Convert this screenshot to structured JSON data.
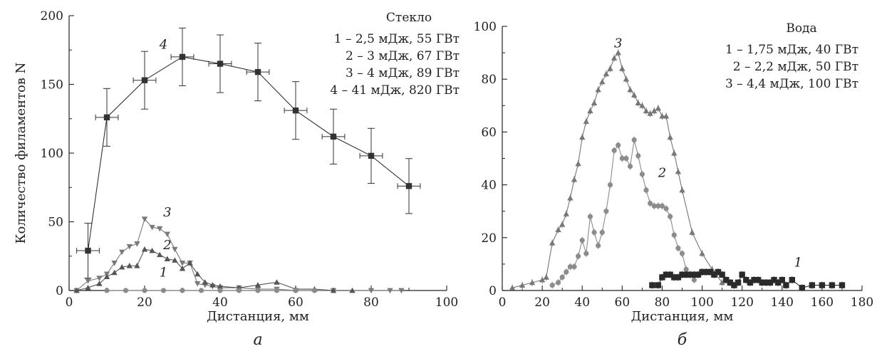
{
  "chart_data": [
    {
      "type": "line",
      "panel_label": "а",
      "ylabel": "Количество филаментов N",
      "xlabel": "Дистанция, мм",
      "xlim": [
        0,
        100
      ],
      "ylim": [
        0,
        200
      ],
      "xticks": [
        0,
        20,
        40,
        60,
        80,
        100
      ],
      "yticks": [
        0,
        50,
        100,
        150,
        200
      ],
      "legend_title": "Стекло",
      "legend": [
        "1 – 2,5 мДж, 55 ГВт",
        "2 – 3 мДж, 67 ГВт",
        "3 – 4 мДж, 89 ГВт",
        "4 – 41 мДж, 820 ГВт"
      ],
      "series": [
        {
          "name": "4",
          "color": "#333333",
          "marker": "square",
          "x": [
            5,
            10,
            20,
            30,
            40,
            50,
            60,
            70,
            80,
            90
          ],
          "y": [
            29,
            126,
            153,
            170,
            165,
            159,
            131,
            112,
            98,
            76
          ],
          "yerr": [
            20,
            21,
            21,
            21,
            21,
            21,
            21,
            20,
            20,
            20
          ],
          "xerr": [
            3,
            3,
            3,
            3,
            3,
            3,
            3,
            3,
            3,
            3
          ]
        },
        {
          "name": "3",
          "color": "#7a7a7a",
          "marker": "tri-down",
          "x": [
            2,
            5,
            8,
            10,
            12,
            14,
            16,
            18,
            20,
            22,
            24,
            26,
            28,
            30,
            32,
            34,
            36,
            38,
            40,
            45,
            50,
            55,
            60,
            70,
            80,
            85,
            88
          ],
          "y": [
            0,
            7,
            9,
            12,
            20,
            28,
            32,
            34,
            52,
            46,
            45,
            41,
            30,
            20,
            20,
            5,
            4,
            3,
            2,
            2,
            1,
            1,
            0,
            0,
            0,
            0,
            0
          ]
        },
        {
          "name": "2",
          "color": "#555555",
          "marker": "tri-up",
          "x": [
            2,
            5,
            8,
            10,
            12,
            14,
            16,
            18,
            20,
            22,
            24,
            26,
            28,
            30,
            32,
            34,
            36,
            38,
            40,
            45,
            50,
            55,
            60,
            65,
            70,
            75
          ],
          "y": [
            0,
            2,
            5,
            10,
            13,
            17,
            18,
            18,
            30,
            29,
            26,
            23,
            22,
            16,
            20,
            12,
            6,
            4,
            3,
            2,
            4,
            6,
            1,
            1,
            0,
            0
          ]
        },
        {
          "name": "1",
          "color": "#8a8a8a",
          "marker": "circle",
          "x": [
            10,
            15,
            20,
            25,
            30,
            35,
            40,
            45,
            50,
            55,
            60,
            65
          ],
          "y": [
            0,
            0,
            0,
            0,
            0,
            0,
            0,
            0,
            0,
            0,
            0,
            0
          ]
        }
      ],
      "annotations": [
        {
          "text": "4",
          "x": 25,
          "y": 176
        },
        {
          "text": "3",
          "x": 26,
          "y": 54
        },
        {
          "text": "2",
          "x": 26,
          "y": 30
        },
        {
          "text": "1",
          "x": 25,
          "y": 10
        }
      ]
    },
    {
      "type": "line",
      "panel_label": "б",
      "ylabel": "",
      "xlabel": "Дистанция, мм",
      "xlim": [
        0,
        180
      ],
      "ylim": [
        0,
        100
      ],
      "xticks": [
        0,
        20,
        40,
        60,
        80,
        100,
        120,
        140,
        160,
        180
      ],
      "yticks": [
        0,
        20,
        40,
        60,
        80,
        100
      ],
      "legend_title": "Вода",
      "legend": [
        "1 – 1,75 мДж, 40 ГВт",
        "2 – 2,2 мДж, 50 ГВт",
        "3 – 4,4 мДж, 100 ГВт"
      ],
      "series": [
        {
          "name": "3",
          "color": "#777777",
          "marker": "tri-up",
          "x": [
            5,
            10,
            15,
            20,
            22,
            25,
            28,
            30,
            32,
            34,
            36,
            38,
            40,
            42,
            44,
            46,
            48,
            50,
            52,
            54,
            56,
            58,
            60,
            62,
            64,
            66,
            68,
            70,
            72,
            74,
            76,
            78,
            80,
            82,
            84,
            86,
            88,
            90,
            95,
            100,
            105,
            110
          ],
          "y": [
            1,
            2,
            3,
            4,
            5,
            18,
            23,
            25,
            29,
            35,
            42,
            48,
            58,
            64,
            68,
            71,
            76,
            79,
            82,
            84,
            88,
            90,
            84,
            80,
            76,
            74,
            71,
            70,
            68,
            67,
            68,
            69,
            66,
            66,
            58,
            52,
            45,
            38,
            22,
            14,
            8,
            3
          ]
        },
        {
          "name": "2",
          "color": "#8c8c8c",
          "marker": "circle",
          "x": [
            25,
            28,
            30,
            32,
            34,
            36,
            38,
            40,
            42,
            44,
            46,
            48,
            50,
            52,
            54,
            56,
            58,
            60,
            62,
            64,
            66,
            68,
            70,
            72,
            74,
            76,
            78,
            80,
            82,
            84,
            86,
            88,
            90,
            92,
            94,
            96
          ],
          "y": [
            2,
            3,
            5,
            7,
            9,
            9,
            13,
            19,
            14,
            28,
            22,
            17,
            22,
            30,
            40,
            53,
            55,
            50,
            50,
            47,
            57,
            51,
            44,
            38,
            33,
            32,
            32,
            32,
            31,
            28,
            21,
            16,
            14,
            8,
            6,
            4
          ]
        },
        {
          "name": "1",
          "color": "#2a2a2a",
          "marker": "square",
          "x": [
            75,
            78,
            80,
            82,
            84,
            86,
            88,
            90,
            92,
            94,
            96,
            98,
            100,
            102,
            104,
            106,
            108,
            110,
            112,
            114,
            116,
            118,
            120,
            122,
            124,
            126,
            128,
            130,
            132,
            134,
            136,
            138,
            140,
            142,
            145,
            150,
            155,
            160,
            165,
            170
          ],
          "y": [
            2,
            2,
            5,
            6,
            6,
            5,
            5,
            6,
            6,
            6,
            6,
            6,
            7,
            7,
            7,
            6,
            7,
            6,
            4,
            3,
            2,
            3,
            6,
            4,
            3,
            4,
            4,
            3,
            3,
            3,
            4,
            3,
            4,
            2,
            4,
            1,
            2,
            2,
            2,
            2
          ]
        }
      ],
      "annotations": [
        {
          "text": "3",
          "x": 58,
          "y": 92
        },
        {
          "text": "2",
          "x": 80,
          "y": 43
        },
        {
          "text": "1",
          "x": 148,
          "y": 9
        }
      ]
    }
  ]
}
